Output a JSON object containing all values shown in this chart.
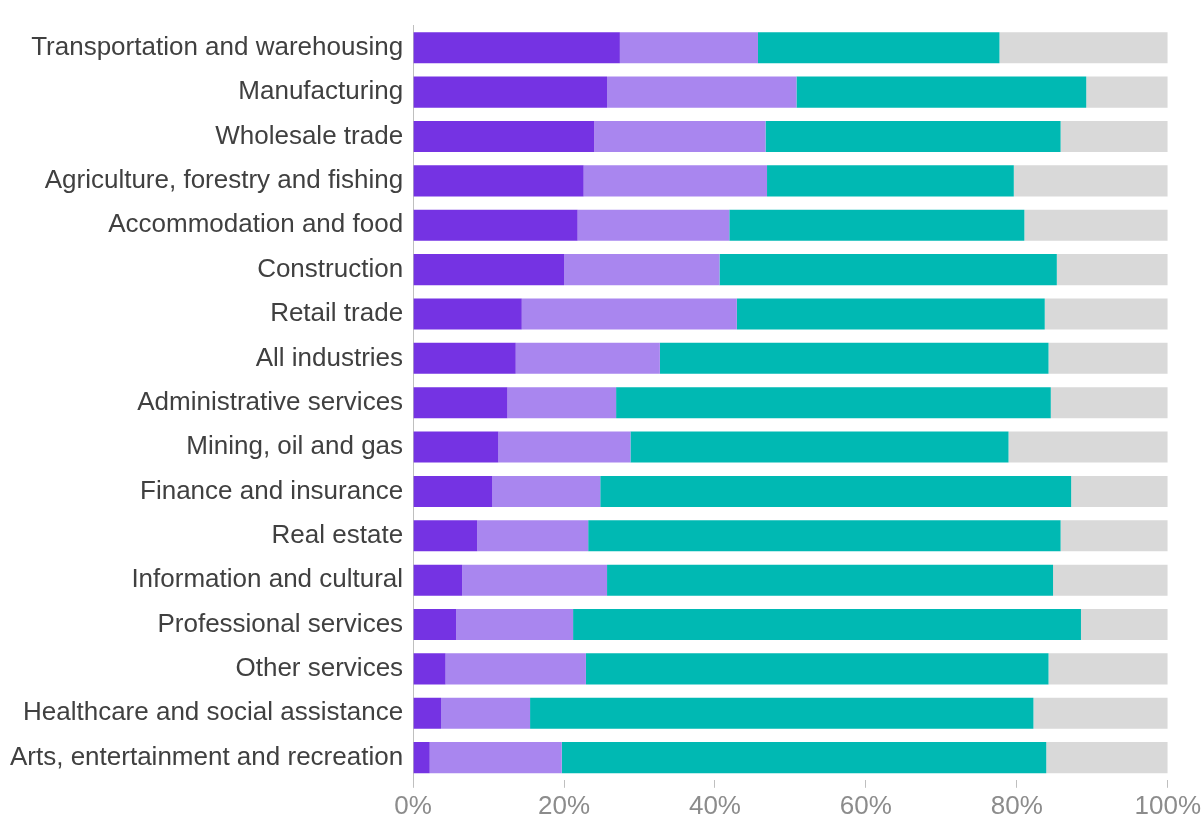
{
  "chart_data": {
    "type": "bar",
    "orientation": "horizontal",
    "stacked": true,
    "categories": [
      "Transportation and warehousing",
      "Manufacturing",
      "Wholesale trade",
      "Agriculture, forestry and fishing",
      "Accommodation and food",
      "Construction",
      "Retail trade",
      "All industries",
      "Administrative services",
      "Mining, oil and gas",
      "Finance and insurance",
      "Real estate",
      "Information and cultural",
      "Professional services",
      "Other services",
      "Healthcare and social assistance",
      "Arts, entertainment and recreation"
    ],
    "series": [
      {
        "color": "#7533e3",
        "values": [
          27.4,
          25.7,
          24.0,
          22.6,
          21.8,
          20.0,
          14.4,
          13.6,
          12.5,
          11.3,
          10.5,
          8.5,
          6.5,
          5.7,
          4.3,
          3.7,
          2.2
        ]
      },
      {
        "color": "#a986ef",
        "values": [
          18.3,
          25.1,
          22.7,
          24.3,
          20.1,
          20.6,
          28.5,
          19.1,
          14.4,
          17.5,
          14.3,
          14.7,
          19.2,
          15.5,
          18.6,
          11.8,
          17.5
        ]
      },
      {
        "color": "#00b9b3",
        "values": [
          32.0,
          38.4,
          39.1,
          32.7,
          39.1,
          44.7,
          40.8,
          51.5,
          57.6,
          50.1,
          62.4,
          62.6,
          59.1,
          67.3,
          61.3,
          66.7,
          64.2
        ]
      },
      {
        "color": "#d9d9d9",
        "values": [
          22.3,
          10.8,
          14.2,
          20.4,
          19.0,
          14.7,
          16.3,
          15.8,
          15.5,
          21.1,
          12.8,
          14.2,
          15.2,
          11.5,
          15.8,
          17.8,
          16.1
        ]
      }
    ],
    "xlim": [
      0,
      100
    ],
    "xticks": [
      {
        "value": 0,
        "label": "0%"
      },
      {
        "value": 20,
        "label": "20%"
      },
      {
        "value": 40,
        "label": "40%"
      },
      {
        "value": 60,
        "label": "60%"
      },
      {
        "value": 80,
        "label": "80%"
      },
      {
        "value": 100,
        "label": "100%"
      }
    ],
    "grid": false,
    "legend": false
  }
}
